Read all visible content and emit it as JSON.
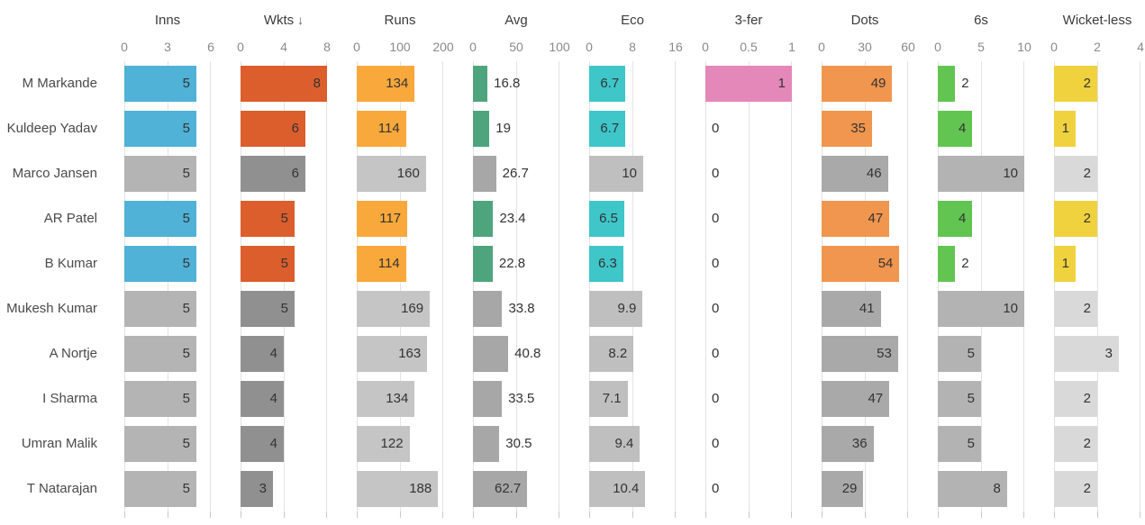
{
  "chart_data": {
    "type": "bar",
    "orientation": "horizontal",
    "layout": "small-multiples bar table, one panel per metric, shared player rows, grid on, no legend",
    "rows": [
      {
        "player": "M Markande",
        "highlighted": true
      },
      {
        "player": "Kuldeep Yadav",
        "highlighted": true
      },
      {
        "player": "Marco Jansen",
        "highlighted": false
      },
      {
        "player": "AR Patel",
        "highlighted": true
      },
      {
        "player": "B Kumar",
        "highlighted": true
      },
      {
        "player": "Mukesh Kumar",
        "highlighted": false
      },
      {
        "player": "A Nortje",
        "highlighted": false
      },
      {
        "player": "I Sharma",
        "highlighted": false
      },
      {
        "player": "Umran Malik",
        "highlighted": false
      },
      {
        "player": "T Natarajan",
        "highlighted": false
      }
    ],
    "columns": [
      {
        "key": "inns",
        "label": "Inns",
        "sort_indicator": "",
        "axis_max": 6,
        "ticks": [
          "0",
          "3",
          "6"
        ],
        "highlight_color": "#50b2d6",
        "muted_color": "#b4b4b4",
        "values": [
          5,
          5,
          5,
          5,
          5,
          5,
          5,
          5,
          5,
          5
        ]
      },
      {
        "key": "wkts",
        "label": "Wkts",
        "sort_indicator": "↓",
        "axis_max": 8,
        "ticks": [
          "0",
          "4",
          "8"
        ],
        "highlight_color": "#dc5e2c",
        "muted_color": "#909090",
        "values": [
          8,
          6,
          6,
          5,
          5,
          5,
          4,
          4,
          4,
          3
        ]
      },
      {
        "key": "runs",
        "label": "Runs",
        "sort_indicator": "",
        "axis_max": 200,
        "ticks": [
          "0",
          "100",
          "200"
        ],
        "highlight_color": "#f9a83b",
        "muted_color": "#c5c5c5",
        "values": [
          134,
          114,
          160,
          117,
          114,
          169,
          163,
          134,
          122,
          188
        ]
      },
      {
        "key": "avg",
        "label": "Avg",
        "sort_indicator": "",
        "axis_max": 100,
        "ticks": [
          "0",
          "50",
          "100"
        ],
        "highlight_color": "#4ea57d",
        "muted_color": "#a7a7a7",
        "values": [
          16.8,
          19,
          26.7,
          23.4,
          22.8,
          33.8,
          40.8,
          33.5,
          30.5,
          62.7
        ]
      },
      {
        "key": "eco",
        "label": "Eco",
        "sort_indicator": "",
        "axis_max": 16,
        "ticks": [
          "0",
          "8",
          "16"
        ],
        "highlight_color": "#3ec6c9",
        "muted_color": "#bfbfbf",
        "values": [
          6.7,
          6.7,
          10,
          6.5,
          6.3,
          9.9,
          8.2,
          7.1,
          9.4,
          10.4
        ]
      },
      {
        "key": "3fer",
        "label": "3-fer",
        "sort_indicator": "",
        "axis_max": 1,
        "ticks": [
          "0",
          "0.5",
          "1"
        ],
        "highlight_color": "#e487b9",
        "muted_color": "#c0c0c0",
        "values": [
          1,
          0,
          0,
          0,
          0,
          0,
          0,
          0,
          0,
          0
        ]
      },
      {
        "key": "dots",
        "label": "Dots",
        "sort_indicator": "",
        "axis_max": 60,
        "ticks": [
          "0",
          "30",
          "60"
        ],
        "highlight_color": "#f0964e",
        "muted_color": "#a9a9a9",
        "values": [
          49,
          35,
          46,
          47,
          54,
          41,
          53,
          47,
          36,
          29
        ]
      },
      {
        "key": "6s",
        "label": "6s",
        "sort_indicator": "",
        "axis_max": 10,
        "ticks": [
          "0",
          "5",
          "10"
        ],
        "highlight_color": "#62c551",
        "muted_color": "#b3b3b3",
        "values": [
          2,
          4,
          10,
          4,
          2,
          10,
          5,
          5,
          5,
          8
        ]
      },
      {
        "key": "wicketless",
        "label": "Wicket-less",
        "sort_indicator": "",
        "axis_max": 4,
        "ticks": [
          "0",
          "2",
          "4"
        ],
        "highlight_color": "#f0d23e",
        "muted_color": "#d9d9d9",
        "values": [
          2,
          1,
          2,
          2,
          1,
          2,
          3,
          2,
          2,
          2
        ]
      }
    ]
  }
}
